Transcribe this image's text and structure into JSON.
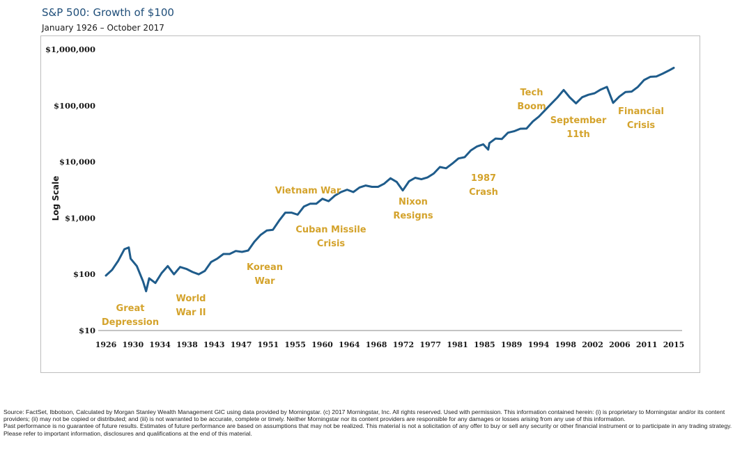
{
  "header": {
    "title": "S&P 500: Growth of $100",
    "subtitle": "January 1926 – October 2017"
  },
  "chart_data": {
    "type": "line",
    "title": "S&P 500: Growth of $100",
    "subtitle": "January 1926 – October 2017",
    "ylabel": "Log Scale",
    "xlabel": "",
    "yscale": "log",
    "ylim": [
      10,
      1000000
    ],
    "xlim": [
      1926,
      2017.8
    ],
    "y_ticks": [
      {
        "value": 1000000,
        "label": "$1,000,000"
      },
      {
        "value": 100000,
        "label": "$100,000"
      },
      {
        "value": 10000,
        "label": "$10,000"
      },
      {
        "value": 1000,
        "label": "$1,000"
      },
      {
        "value": 100,
        "label": "$100"
      },
      {
        "value": 10,
        "label": "$10"
      }
    ],
    "x_tick_labels": [
      "1926",
      "1930",
      "1934",
      "1938",
      "1943",
      "1947",
      "1951",
      "1955",
      "1960",
      "1964",
      "1968",
      "1972",
      "1977",
      "1981",
      "1985",
      "1989",
      "1994",
      "1998",
      "2002",
      "2006",
      "2011",
      "2015"
    ],
    "grid": false,
    "line_color": "#1f5c8b",
    "annotation_color": "#d4a32c",
    "series": [
      {
        "x": [
          1926,
          1927,
          1928,
          1929,
          1929.7,
          1930,
          1931,
          1932,
          1932.5,
          1933,
          1934,
          1935,
          1936,
          1937,
          1938,
          1939,
          1940,
          1941,
          1942,
          1943,
          1944,
          1945,
          1946,
          1947,
          1948,
          1949,
          1950,
          1951,
          1952,
          1953,
          1954,
          1955,
          1956,
          1957,
          1958,
          1959,
          1960,
          1961,
          1962,
          1963,
          1964,
          1965,
          1966,
          1967,
          1968,
          1969,
          1970,
          1971,
          1972,
          1973,
          1974,
          1975,
          1976,
          1977,
          1978,
          1979,
          1980,
          1981,
          1982,
          1983,
          1984,
          1985,
          1986,
          1987,
          1987.8,
          1988,
          1989,
          1990,
          1991,
          1992,
          1993,
          1994,
          1995,
          1996,
          1997,
          1998,
          1999,
          2000,
          2001,
          2002,
          2003,
          2004,
          2005,
          2006,
          2007,
          2008,
          2009,
          2010,
          2011,
          2012,
          2013,
          2014,
          2015,
          2016,
          2017,
          2017.8
        ],
        "y": [
          95,
          120,
          175,
          280,
          300,
          190,
          140,
          75,
          50,
          85,
          70,
          105,
          140,
          100,
          135,
          125,
          110,
          100,
          115,
          165,
          190,
          230,
          230,
          260,
          250,
          265,
          380,
          500,
          600,
          620,
          900,
          1250,
          1250,
          1150,
          1600,
          1800,
          1800,
          2200,
          2000,
          2500,
          2900,
          3200,
          2900,
          3500,
          3800,
          3600,
          3600,
          4100,
          5100,
          4400,
          3100,
          4500,
          5200,
          4900,
          5300,
          6200,
          8100,
          7700,
          9300,
          11500,
          12100,
          16000,
          18800,
          20500,
          16500,
          21500,
          26000,
          25500,
          33000,
          35000,
          38800,
          39000,
          52000,
          64000,
          83000,
          108000,
          140000,
          190000,
          140000,
          110000,
          141000,
          156000,
          166000,
          193000,
          215000,
          112000,
          145000,
          175000,
          178000,
          215000,
          285000,
          325000,
          330000,
          370000,
          420000,
          470000
        ]
      }
    ],
    "annotations": [
      {
        "lines": [
          "Great",
          "Depression"
        ]
      },
      {
        "lines": [
          "World",
          "War II"
        ]
      },
      {
        "lines": [
          "Korean",
          "War"
        ]
      },
      {
        "lines": [
          "Vietnam War"
        ]
      },
      {
        "lines": [
          "Cuban Missile",
          "Crisis"
        ]
      },
      {
        "lines": [
          "Nixon",
          "Resigns"
        ]
      },
      {
        "lines": [
          "1987",
          "Crash"
        ]
      },
      {
        "lines": [
          "Tech",
          "Boom"
        ]
      },
      {
        "lines": [
          "September",
          "11th"
        ]
      },
      {
        "lines": [
          "Financial",
          "Crisis"
        ]
      }
    ]
  },
  "footer": {
    "source": "Source: FactSet, Ibbotson, Calculated by Morgan Stanley Wealth Management  GIC using data provided by Morningstar. (c) 2017 Morningstar, Inc. All rights reserved. Used with permission. This information contained herein: (i) is proprietary to Morningstar and/or its content providers; (ii) may not be copied or distributed; and (iii) is not warranted to be accurate, complete or timely. Neither Morningstar nor its content providers are responsible for any damages or losses arising from any use of this information.",
    "disclaimer": "Past performance is no guarantee of future results. Estimates of future performance are based on assumptions that may not be realized. This material is not a solicitation of any offer to buy or sell any security or other financial instrument or to participate in any trading strategy. Please refer to important information, disclosures and qualifications at the end of this material."
  }
}
